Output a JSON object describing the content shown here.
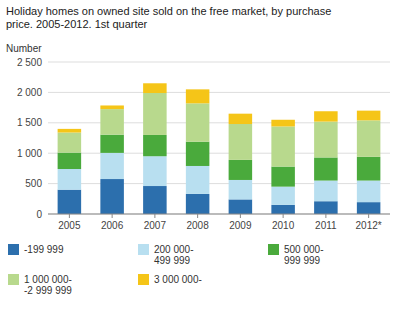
{
  "chart_data": {
    "type": "bar",
    "stacked": true,
    "title": "Holiday homes on owned site sold on the free market, by purchase\nprice. 2005-2012. 1st quarter",
    "ylabel": "Number",
    "categories": [
      "2005",
      "2006",
      "2007",
      "2008",
      "2009",
      "2010",
      "2011",
      "2012*"
    ],
    "series": [
      {
        "name": "-199 999",
        "color": "#2c6fad",
        "values": [
          400,
          575,
          460,
          330,
          240,
          150,
          210,
          195
        ]
      },
      {
        "name": "200 000-\n499 999",
        "color": "#b8dff0",
        "values": [
          340,
          430,
          490,
          460,
          320,
          300,
          340,
          355
        ]
      },
      {
        "name": "500 000-\n999 999",
        "color": "#4aaa3c",
        "values": [
          270,
          300,
          350,
          400,
          330,
          330,
          380,
          390
        ]
      },
      {
        "name": "1 000 000-\n-2 999 999",
        "color": "#b8d98d",
        "values": [
          330,
          420,
          690,
          630,
          590,
          660,
          590,
          600
        ]
      },
      {
        "name": "3 000 000-",
        "color": "#f5c518",
        "values": [
          60,
          60,
          160,
          230,
          170,
          110,
          170,
          160
        ]
      }
    ],
    "ylim": [
      0,
      2500
    ],
    "yticks": [
      0,
      500,
      {
        "value": 1000,
        "label": "1 000"
      },
      {
        "value": 1500,
        "label": "1 500"
      },
      {
        "value": 2000,
        "label": "2 000"
      },
      {
        "value": 2500,
        "label": "2 500"
      }
    ],
    "grid": true
  }
}
